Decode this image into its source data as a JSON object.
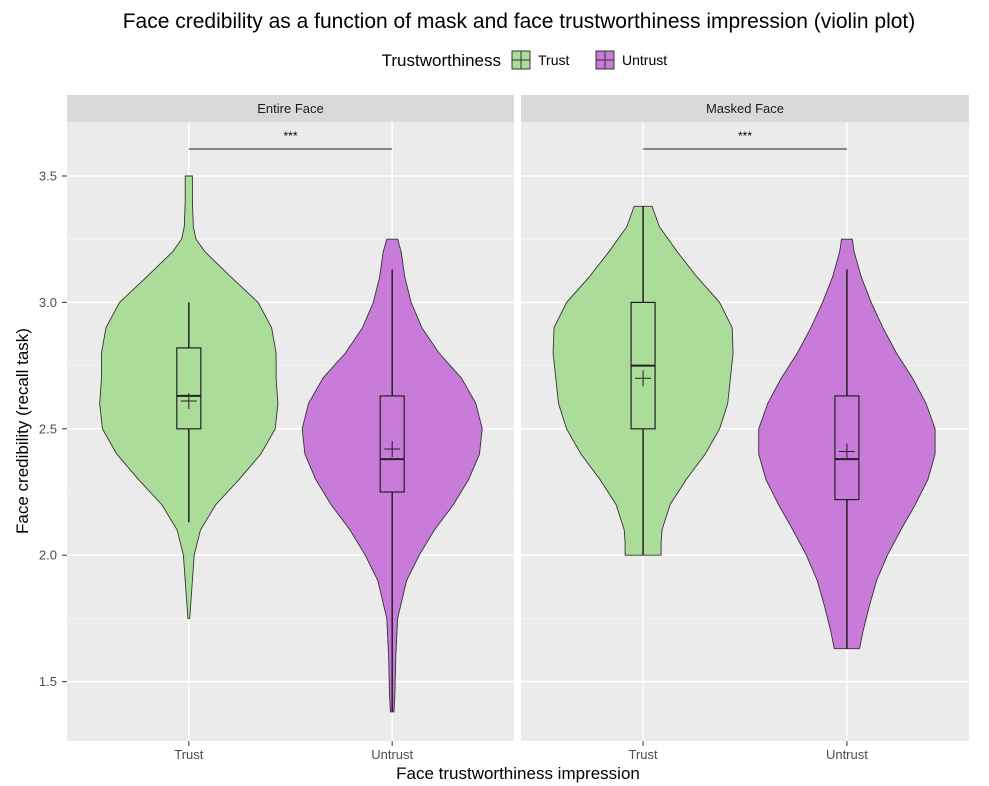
{
  "chart_data": {
    "type": "violin",
    "title": "Face credibility as a function of mask and face trustworthiness impression (violin plot)",
    "xlabel": "Face trustworthiness impression",
    "ylabel": "Face credibility (recall task)",
    "ylim": [
      1.3,
      3.73
    ],
    "yticks": [
      1.5,
      2.0,
      2.5,
      3.0,
      3.5
    ],
    "ytick_labels": [
      "1.5",
      "2.0",
      "2.5",
      "3.0",
      "3.5"
    ],
    "categories": [
      "Trust",
      "Untrust"
    ],
    "legend": {
      "title": "Trustworthiness",
      "position": "top",
      "entries": [
        {
          "name": "Trust",
          "color": "#acdc9a"
        },
        {
          "name": "Untrust",
          "color": "#c87bd9"
        }
      ]
    },
    "grid": true,
    "panels": [
      {
        "label": "Entire Face",
        "significance": "***",
        "groups": [
          {
            "name": "Trust",
            "color": "#acdc9a",
            "min": 1.75,
            "max": 3.5,
            "q1": 2.5,
            "median": 2.63,
            "q3": 2.82,
            "mean": 2.61,
            "whisker_low": 2.13,
            "whisker_high": 3.0,
            "density": [
              [
                1.75,
                0.01
              ],
              [
                1.8,
                0.02
              ],
              [
                1.85,
                0.03
              ],
              [
                1.9,
                0.04
              ],
              [
                2.0,
                0.06
              ],
              [
                2.1,
                0.13
              ],
              [
                2.2,
                0.3
              ],
              [
                2.3,
                0.56
              ],
              [
                2.4,
                0.8
              ],
              [
                2.5,
                0.96
              ],
              [
                2.6,
                0.99
              ],
              [
                2.7,
                0.97
              ],
              [
                2.8,
                0.97
              ],
              [
                2.9,
                0.92
              ],
              [
                3.0,
                0.77
              ],
              [
                3.1,
                0.47
              ],
              [
                3.2,
                0.18
              ],
              [
                3.25,
                0.08
              ],
              [
                3.3,
                0.05
              ],
              [
                3.4,
                0.04
              ],
              [
                3.5,
                0.04
              ]
            ]
          },
          {
            "name": "Untrust",
            "color": "#c87bd9",
            "min": 1.38,
            "max": 3.25,
            "q1": 2.25,
            "median": 2.38,
            "q3": 2.63,
            "mean": 2.42,
            "whisker_low": 1.38,
            "whisker_high": 3.13,
            "density": [
              [
                1.38,
                0.02
              ],
              [
                1.45,
                0.03
              ],
              [
                1.6,
                0.04
              ],
              [
                1.75,
                0.06
              ],
              [
                1.9,
                0.16
              ],
              [
                2.0,
                0.3
              ],
              [
                2.1,
                0.47
              ],
              [
                2.2,
                0.68
              ],
              [
                2.3,
                0.85
              ],
              [
                2.4,
                0.97
              ],
              [
                2.5,
                1.0
              ],
              [
                2.6,
                0.93
              ],
              [
                2.7,
                0.77
              ],
              [
                2.8,
                0.52
              ],
              [
                2.9,
                0.33
              ],
              [
                3.0,
                0.21
              ],
              [
                3.1,
                0.14
              ],
              [
                3.2,
                0.1
              ],
              [
                3.25,
                0.06
              ]
            ]
          }
        ]
      },
      {
        "label": "Masked Face",
        "significance": "***",
        "groups": [
          {
            "name": "Trust",
            "color": "#acdc9a",
            "min": 2.0,
            "max": 3.38,
            "q1": 2.5,
            "median": 2.75,
            "q3": 3.0,
            "mean": 2.7,
            "whisker_low": 2.0,
            "whisker_high": 3.38,
            "density": [
              [
                2.0,
                0.2
              ],
              [
                2.05,
                0.2
              ],
              [
                2.1,
                0.21
              ],
              [
                2.2,
                0.3
              ],
              [
                2.3,
                0.48
              ],
              [
                2.4,
                0.69
              ],
              [
                2.5,
                0.85
              ],
              [
                2.6,
                0.94
              ],
              [
                2.7,
                0.97
              ],
              [
                2.8,
                1.0
              ],
              [
                2.9,
                0.99
              ],
              [
                3.0,
                0.85
              ],
              [
                3.1,
                0.6
              ],
              [
                3.2,
                0.38
              ],
              [
                3.3,
                0.18
              ],
              [
                3.38,
                0.1
              ]
            ]
          },
          {
            "name": "Untrust",
            "color": "#c87bd9",
            "min": 1.63,
            "max": 3.25,
            "q1": 2.22,
            "median": 2.38,
            "q3": 2.63,
            "mean": 2.41,
            "whisker_low": 1.63,
            "whisker_high": 3.13,
            "density": [
              [
                1.63,
                0.14
              ],
              [
                1.7,
                0.18
              ],
              [
                1.8,
                0.25
              ],
              [
                1.9,
                0.33
              ],
              [
                2.0,
                0.45
              ],
              [
                2.1,
                0.6
              ],
              [
                2.2,
                0.76
              ],
              [
                2.3,
                0.9
              ],
              [
                2.4,
                0.98
              ],
              [
                2.5,
                0.98
              ],
              [
                2.6,
                0.88
              ],
              [
                2.7,
                0.73
              ],
              [
                2.8,
                0.55
              ],
              [
                2.9,
                0.4
              ],
              [
                3.0,
                0.27
              ],
              [
                3.1,
                0.16
              ],
              [
                3.2,
                0.08
              ],
              [
                3.25,
                0.06
              ]
            ]
          }
        ]
      }
    ]
  }
}
